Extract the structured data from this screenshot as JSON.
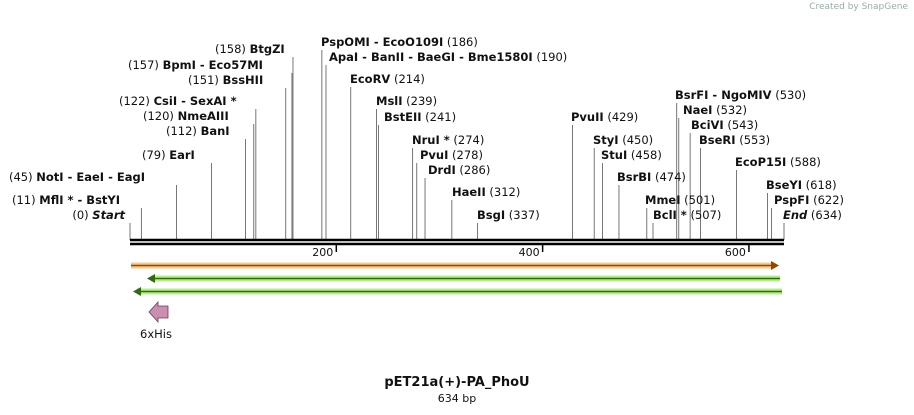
{
  "credit": "Created by SnapGene",
  "title": "pET21a(+)-PA_PhoU",
  "subtitle": "634 bp",
  "sequence_length": 634,
  "ruler": {
    "ticks": [
      200,
      400,
      600
    ]
  },
  "feature_label": "6xHis",
  "sites": [
    {
      "name": "Start",
      "pos": 0,
      "italic": true
    },
    {
      "name": "MflI * - BstYI",
      "pos": 11
    },
    {
      "name": "NotI - EaeI - EagI",
      "pos": 45
    },
    {
      "name": "EarI",
      "pos": 79
    },
    {
      "name": "BanI",
      "pos": 112
    },
    {
      "name": "NmeAIII",
      "pos": 120
    },
    {
      "name": "CsiI - SexAI *",
      "pos": 122
    },
    {
      "name": "BssHII",
      "pos": 151
    },
    {
      "name": "BpmI - Eco57MI",
      "pos": 157
    },
    {
      "name": "BtgZI",
      "pos": 158
    },
    {
      "name": "PspOMI - EcoO109I",
      "pos": 186
    },
    {
      "name": "ApaI - BanII - BaeGI - Bme1580I",
      "pos": 190
    },
    {
      "name": "EcoRV",
      "pos": 214
    },
    {
      "name": "MslI",
      "pos": 239
    },
    {
      "name": "BstEII",
      "pos": 241
    },
    {
      "name": "NruI *",
      "pos": 274
    },
    {
      "name": "PvuI",
      "pos": 278
    },
    {
      "name": "DrdI",
      "pos": 286
    },
    {
      "name": "HaeII",
      "pos": 312
    },
    {
      "name": "BsgI",
      "pos": 337
    },
    {
      "name": "PvuII",
      "pos": 429
    },
    {
      "name": "StyI",
      "pos": 450
    },
    {
      "name": "StuI",
      "pos": 458
    },
    {
      "name": "BsrBI",
      "pos": 474
    },
    {
      "name": "MmeI",
      "pos": 501
    },
    {
      "name": "BclI *",
      "pos": 507
    },
    {
      "name": "BsrFI - NgoMIV",
      "pos": 530
    },
    {
      "name": "NaeI",
      "pos": 532
    },
    {
      "name": "BciVI",
      "pos": 543
    },
    {
      "name": "BseRI",
      "pos": 553
    },
    {
      "name": "EcoP15I",
      "pos": 588
    },
    {
      "name": "BseYI",
      "pos": 618
    },
    {
      "name": "PspFI",
      "pos": 622
    },
    {
      "name": "End",
      "pos": 634,
      "italic": true
    }
  ]
}
